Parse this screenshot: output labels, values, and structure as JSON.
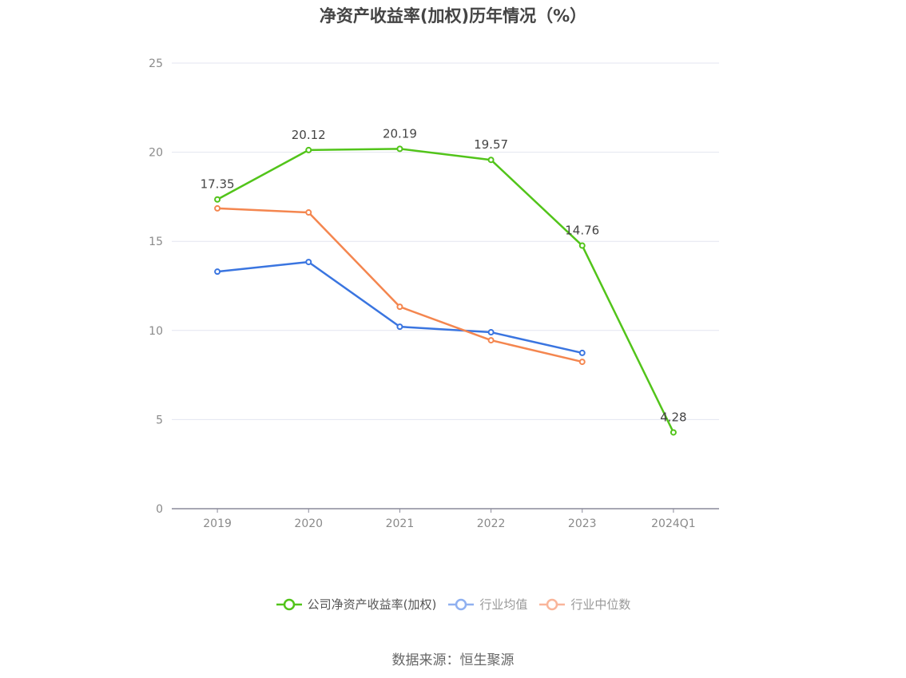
{
  "title": "净资产收益率(加权)历年情况（%）",
  "source": "数据来源：恒生聚源",
  "colors": {
    "company": "#52c41a",
    "industry_avg": "#3a75e0",
    "industry_median": "#f4864f",
    "grid": "#e3e6f0",
    "axis": "#8a8a9a",
    "tick_text": "#8a8a8a",
    "label_text": "#444444"
  },
  "legend": [
    {
      "label": "公司净资产收益率(加权)",
      "color": "#52c41a",
      "faded": false
    },
    {
      "label": "行业均值",
      "color": "#8fb0f0",
      "faded": true
    },
    {
      "label": "行业中位数",
      "color": "#f9b59a",
      "faded": true
    }
  ],
  "chart_data": {
    "type": "line",
    "title": "净资产收益率(加权)历年情况（%）",
    "xlabel": "",
    "ylabel": "",
    "categories": [
      "2019",
      "2020",
      "2021",
      "2022",
      "2023",
      "2024Q1"
    ],
    "ylim": [
      0,
      25
    ],
    "yticks": [
      0,
      5,
      10,
      15,
      20,
      25
    ],
    "grid": true,
    "legend_position": "bottom",
    "series": [
      {
        "name": "公司净资产收益率(加权)",
        "values": [
          17.35,
          20.12,
          20.19,
          19.57,
          14.76,
          4.28
        ],
        "labels": [
          "17.35",
          "20.12",
          "20.19",
          "19.57",
          "14.76",
          "4.28"
        ]
      },
      {
        "name": "行业均值",
        "values": [
          13.3,
          13.84,
          10.21,
          9.9,
          8.74,
          null
        ]
      },
      {
        "name": "行业中位数",
        "values": [
          16.85,
          16.62,
          11.33,
          9.45,
          8.24,
          null
        ]
      }
    ]
  }
}
